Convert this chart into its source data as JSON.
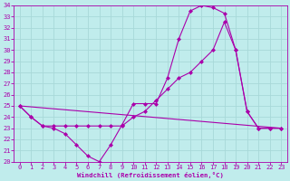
{
  "xlabel": "Windchill (Refroidissement éolien,°C)",
  "bg_color": "#c0ecec",
  "grid_color": "#a8d8d8",
  "line_color": "#aa00aa",
  "xlim": [
    -0.5,
    23.5
  ],
  "ylim": [
    20,
    34
  ],
  "xticks": [
    0,
    1,
    2,
    3,
    4,
    5,
    6,
    7,
    8,
    9,
    10,
    11,
    12,
    13,
    14,
    15,
    16,
    17,
    18,
    19,
    20,
    21,
    22,
    23
  ],
  "yticks": [
    20,
    21,
    22,
    23,
    24,
    25,
    26,
    27,
    28,
    29,
    30,
    31,
    32,
    33,
    34
  ],
  "curve1_x": [
    0,
    1,
    2,
    3,
    4,
    5,
    6,
    7,
    8,
    9,
    10,
    11,
    12,
    13,
    14,
    15,
    16,
    17,
    18,
    19,
    20,
    21,
    22,
    23
  ],
  "curve1_y": [
    25.0,
    24.0,
    23.2,
    23.0,
    22.5,
    21.5,
    20.5,
    20.0,
    21.5,
    23.3,
    25.2,
    25.2,
    25.2,
    27.5,
    31.0,
    33.5,
    34.0,
    33.8,
    33.3,
    30.0,
    24.5,
    23.0,
    23.0,
    23.0
  ],
  "curve2_x": [
    0,
    23
  ],
  "curve2_y": [
    25.0,
    23.0
  ],
  "curve3_x": [
    0,
    1,
    2,
    3,
    4,
    5,
    6,
    7,
    8,
    9,
    10,
    11,
    12,
    13,
    14,
    15,
    16,
    17,
    18,
    19,
    20,
    21,
    22,
    23
  ],
  "curve3_y": [
    25.0,
    24.0,
    23.2,
    23.2,
    23.2,
    23.2,
    23.2,
    23.2,
    23.2,
    23.2,
    24.0,
    24.5,
    25.5,
    26.5,
    27.5,
    28.0,
    29.0,
    30.0,
    32.5,
    30.0,
    24.5,
    23.0,
    23.0,
    23.0
  ]
}
